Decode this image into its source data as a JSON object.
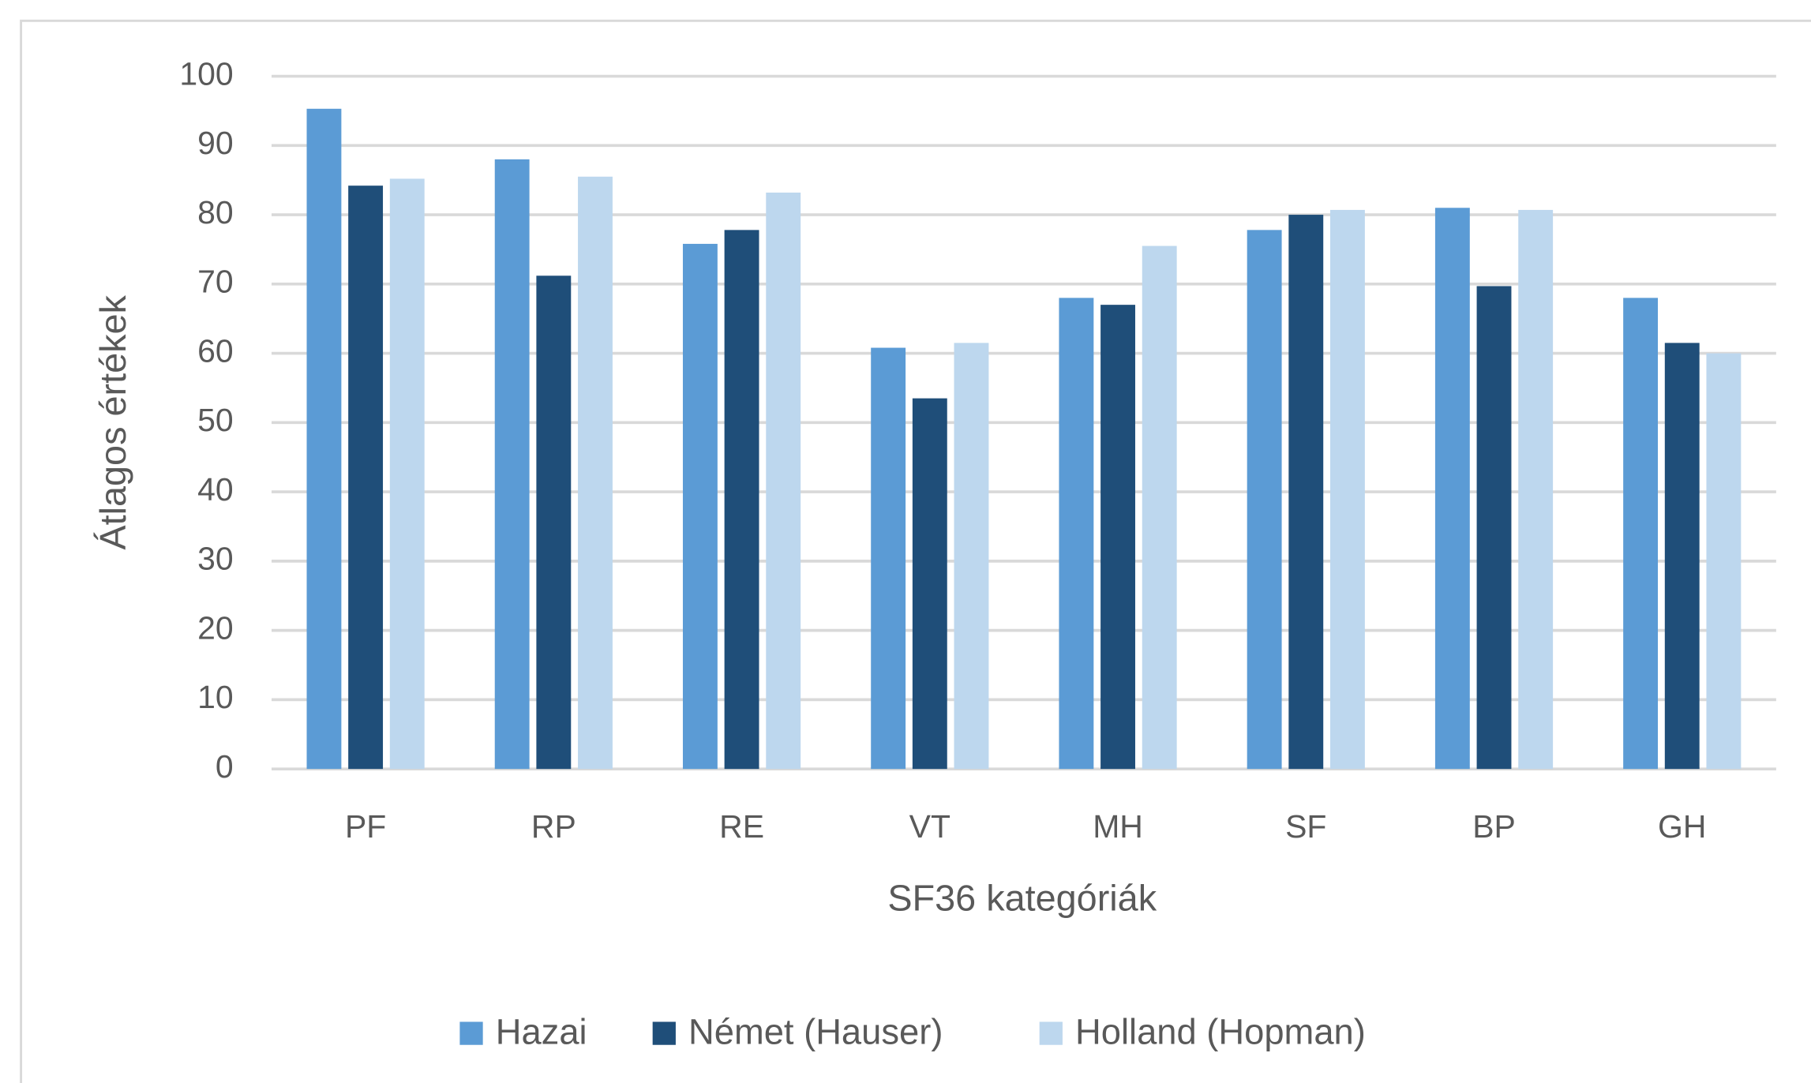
{
  "chart_data": {
    "type": "bar",
    "categories": [
      "PF",
      "RP",
      "RE",
      "VT",
      "MH",
      "SF",
      "BP",
      "GH"
    ],
    "series": [
      {
        "name": "Hazai",
        "color": "#5b9bd5",
        "values": [
          95.3,
          88,
          75.8,
          60.8,
          68,
          77.8,
          81,
          68
        ]
      },
      {
        "name": "Német (Hauser)",
        "color": "#1f4e79",
        "values": [
          84.2,
          71.2,
          77.8,
          53.5,
          67,
          80,
          69.7,
          61.5
        ]
      },
      {
        "name": "Holland (Hopman)",
        "color": "#bdd7ee",
        "values": [
          85.2,
          85.5,
          83.2,
          61.5,
          75.5,
          80.7,
          80.7,
          60
        ]
      }
    ],
    "x_label": "SF36 kategóriák",
    "y_label": "Átlagos értékek",
    "ylim": [
      0,
      100
    ],
    "yticks": [
      0,
      10,
      20,
      30,
      40,
      50,
      60,
      70,
      80,
      90,
      100
    ],
    "grid": true,
    "legend": "bottom"
  }
}
